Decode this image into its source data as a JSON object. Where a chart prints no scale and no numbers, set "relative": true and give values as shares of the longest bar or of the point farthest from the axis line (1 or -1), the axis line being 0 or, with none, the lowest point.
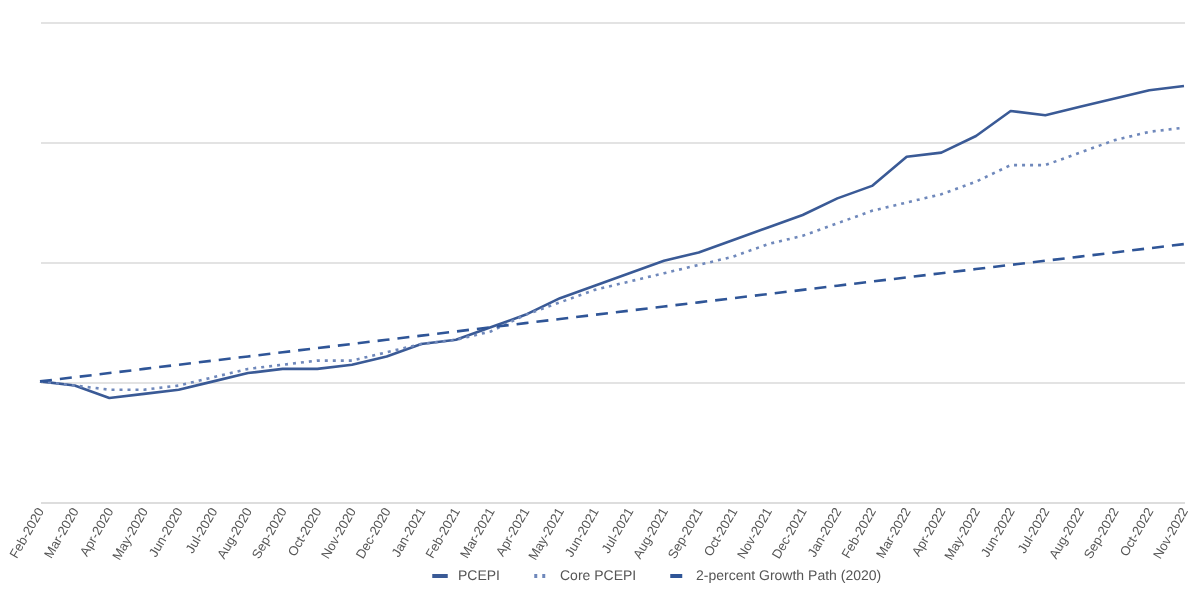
{
  "chart_data": {
    "type": "line",
    "relative": true,
    "grid": "y",
    "legend": "bottom",
    "marker": "none",
    "categories": [
      "Feb-2020",
      "Mar-2020",
      "Apr-2020",
      "May-2020",
      "Jun-2020",
      "Jul-2020",
      "Aug-2020",
      "Sep-2020",
      "Oct-2020",
      "Nov-2020",
      "Dec-2020",
      "Jan-2021",
      "Feb-2021",
      "Mar-2021",
      "Apr-2021",
      "May-2021",
      "Jun-2021",
      "Jul-2021",
      "Aug-2021",
      "Sep-2021",
      "Oct-2021",
      "Nov-2021",
      "Dec-2021",
      "Jan-2022",
      "Feb-2022",
      "Mar-2022",
      "Apr-2022",
      "May-2022",
      "Jun-2022",
      "Jul-2022",
      "Aug-2022",
      "Sep-2022",
      "Oct-2022",
      "Nov-2022"
    ],
    "series": [
      {
        "name": "PCEPI",
        "color": "#3a5a96",
        "line_style": "solid",
        "values": [
          0.29,
          0.28,
          0.25,
          0.26,
          0.27,
          0.29,
          0.31,
          0.32,
          0.32,
          0.33,
          0.35,
          0.38,
          0.39,
          0.42,
          0.45,
          0.49,
          0.52,
          0.55,
          0.58,
          0.6,
          0.63,
          0.66,
          0.69,
          0.73,
          0.76,
          0.83,
          0.84,
          0.88,
          0.94,
          0.93,
          0.95,
          0.97,
          0.99,
          1
        ]
      },
      {
        "name": "Core PCEPI",
        "color": "#6f88bb",
        "line_style": "dotted",
        "values": [
          0.29,
          0.28,
          0.27,
          0.27,
          0.28,
          0.3,
          0.32,
          0.33,
          0.34,
          0.34,
          0.36,
          0.38,
          0.39,
          0.41,
          0.45,
          0.48,
          0.51,
          0.53,
          0.55,
          0.57,
          0.59,
          0.62,
          0.64,
          0.67,
          0.7,
          0.72,
          0.74,
          0.77,
          0.81,
          0.81,
          0.84,
          0.87,
          0.89,
          0.9
        ]
      },
      {
        "name": "2-percent Growth Path (2020)",
        "color": "#2f5597",
        "line_style": "dashed",
        "values": [
          0.29,
          0.3,
          0.31,
          0.32,
          0.33,
          0.34,
          0.35,
          0.36,
          0.37,
          0.38,
          0.39,
          0.4,
          0.41,
          0.42,
          0.43,
          0.44,
          0.45,
          0.46,
          0.47,
          0.48,
          0.49,
          0.5,
          0.51,
          0.52,
          0.53,
          0.54,
          0.55,
          0.56,
          0.57,
          0.58,
          0.59,
          0.6,
          0.61,
          0.62
        ]
      }
    ]
  }
}
